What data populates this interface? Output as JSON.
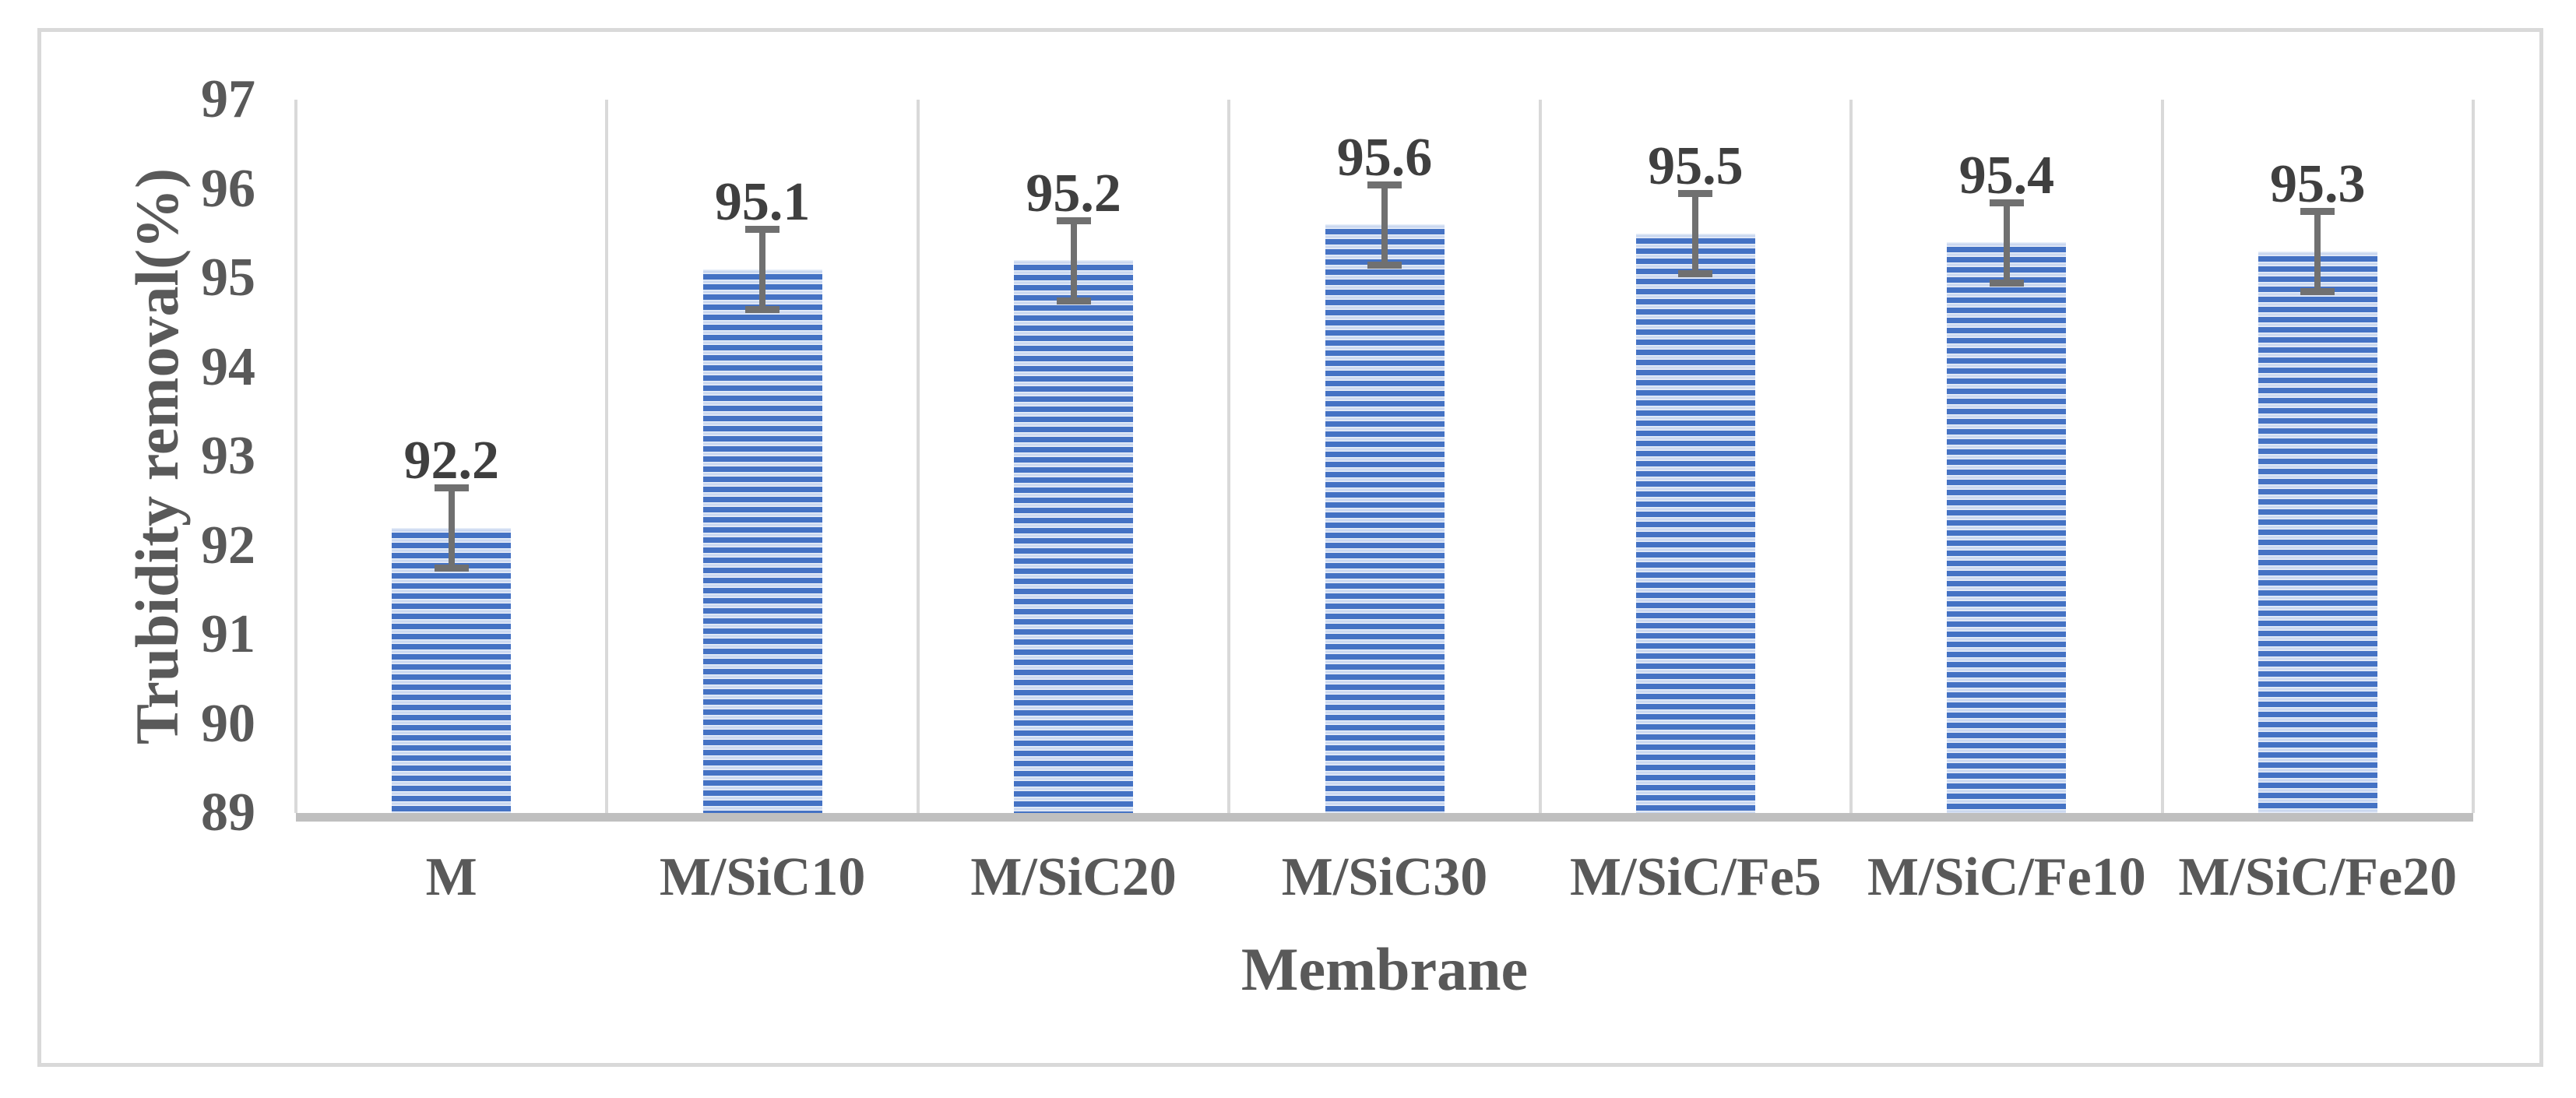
{
  "figure": {
    "background": "#ffffff",
    "border_color": "#d9d9d9"
  },
  "chart_data": {
    "type": "bar",
    "title": "",
    "categories": [
      "M",
      "M/SiC10",
      "M/SiC20",
      "M/SiC30",
      "M/SiC/Fe5",
      "M/SiC/Fe10",
      "M/SiC/Fe20"
    ],
    "values": [
      92.2,
      95.1,
      95.2,
      95.6,
      95.5,
      95.4,
      95.3
    ],
    "value_labels": [
      "92.2",
      "95.1",
      "95.2",
      "95.6",
      "95.5",
      "95.4",
      "95.3"
    ],
    "error_bar": 0.45,
    "xlabel": "Membrane",
    "ylabel": "Trubidity removal(%)",
    "ylim": [
      89,
      97
    ],
    "ytick_step": 1,
    "ytick_labels": [
      "89",
      "90",
      "91",
      "92",
      "93",
      "94",
      "95",
      "96",
      "97"
    ],
    "grid": "vertical-category-boundaries",
    "legend": "none",
    "colors": {
      "bar_stripe_blue": "#4472c4",
      "bar_stripe_light": "#eef3fb",
      "gridline": "#d9d9d9",
      "x_axis_line": "#bfbfbf",
      "error_bar": "#707070",
      "data_label": "#3f3f3f",
      "axis_text": "#595959",
      "chart_border": "#d9d9d9"
    }
  }
}
